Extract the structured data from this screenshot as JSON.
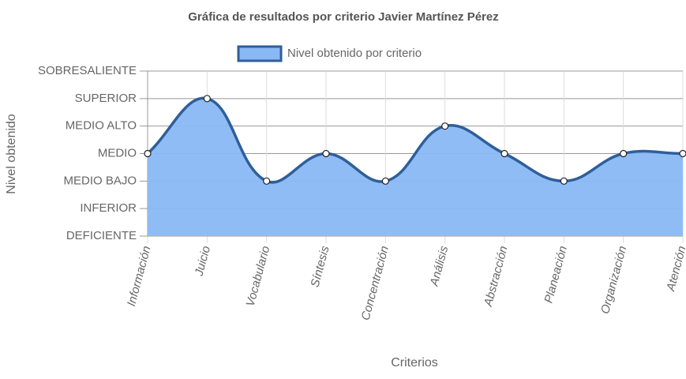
{
  "chart_data": {
    "type": "line",
    "fill": true,
    "title": "Gráfica de resultados por criterio Javier Martínez Pérez",
    "x_label": "Criterios",
    "y_label": "Nivel obtenido",
    "categories": [
      "Información",
      "Juicio",
      "Vocabulario",
      "Síntesis",
      "Concentración",
      "Análisis",
      "Abstracción",
      "Planeación",
      "Organización",
      "Atención"
    ],
    "series": [
      {
        "name": "Nivel obtenido por criterio",
        "color": "#2f5f9a",
        "fill_color": "#8ab8f5",
        "values": [
          3,
          5,
          2,
          3,
          2,
          4,
          3,
          2,
          3,
          3
        ]
      }
    ],
    "ylim": [
      0,
      6
    ],
    "yticks": [
      {
        "value": 0,
        "label": "DEFICIENTE"
      },
      {
        "value": 1,
        "label": "INFERIOR"
      },
      {
        "value": 2,
        "label": "MEDIO BAJO"
      },
      {
        "value": 3,
        "label": "MEDIO"
      },
      {
        "value": 4,
        "label": "MEDIO ALTO"
      },
      {
        "value": 5,
        "label": "SUPERIOR"
      },
      {
        "value": 6,
        "label": "SOBRESALIENTE"
      }
    ],
    "grid": true,
    "legend": "top"
  }
}
